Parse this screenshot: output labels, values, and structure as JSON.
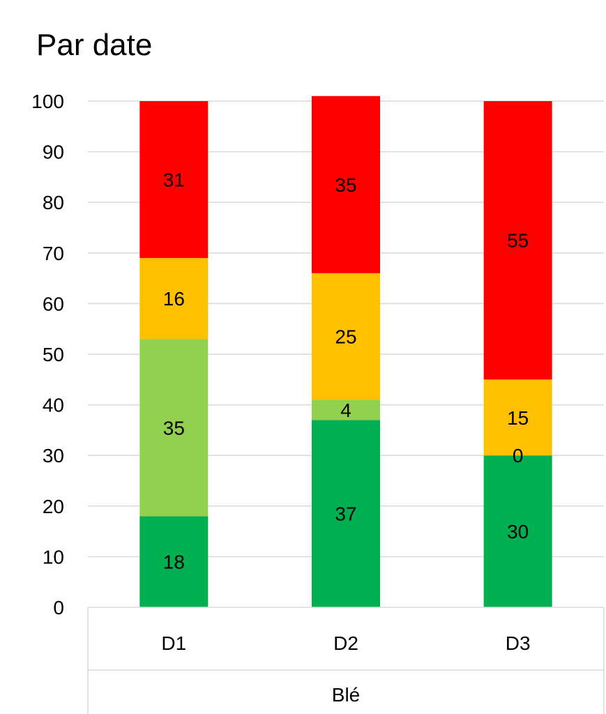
{
  "chart_data": {
    "type": "bar",
    "stacked": true,
    "title": "Par date",
    "group_label": "Blé",
    "categories": [
      "D1",
      "D2",
      "D3"
    ],
    "ylim": [
      0,
      100
    ],
    "yticks": [
      0,
      10,
      20,
      30,
      40,
      50,
      60,
      70,
      80,
      90,
      100
    ],
    "grid": true,
    "legend": "none",
    "series": [
      {
        "color": "#00B050",
        "values": [
          18,
          37,
          30
        ]
      },
      {
        "color": "#92D050",
        "values": [
          35,
          4,
          0
        ]
      },
      {
        "color": "#FFC000",
        "values": [
          16,
          25,
          15
        ]
      },
      {
        "color": "#FF0000",
        "values": [
          31,
          35,
          55
        ]
      }
    ]
  }
}
